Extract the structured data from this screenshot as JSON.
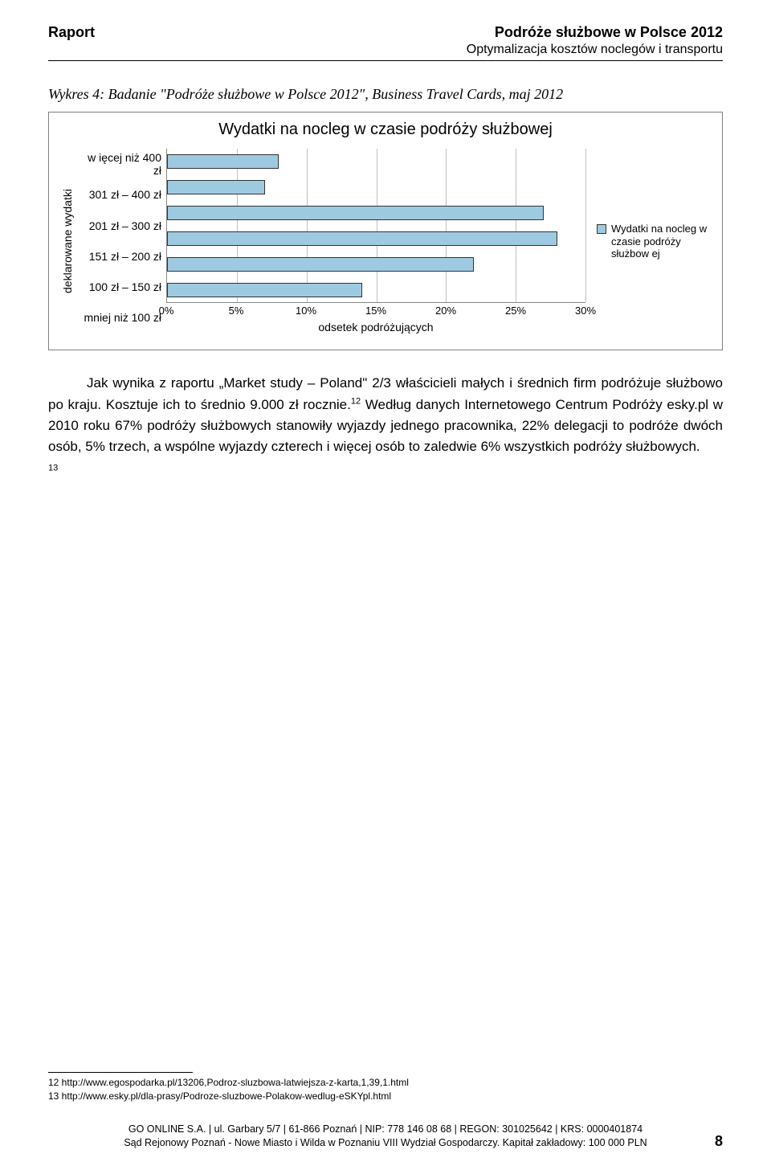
{
  "header": {
    "left": "Raport",
    "right_title": "Podróże służbowe w Polsce 2012",
    "right_sub": "Optymalizacja kosztów noclegów i transportu"
  },
  "caption": "Wykres 4: Badanie \"Podróże służbowe w Polsce 2012\", Business Travel Cards, maj 2012",
  "chart": {
    "type": "bar-horizontal",
    "title": "Wydatki na nocleg w czasie podróży służbowej",
    "ylabel": "deklarowane wydatki",
    "xlabel": "odsetek podróżujących",
    "categories": [
      "w ięcej niż 400 zł",
      "301 zł – 400 zł",
      "201 zł – 300 zł",
      "151 zł – 200 zł",
      "100 zł – 150 zł",
      "mniej niż 100 zł"
    ],
    "values": [
      8,
      7,
      27,
      28,
      22,
      14
    ],
    "bar_color": "#9ecae1",
    "bar_border": "#333333",
    "xlim_max": 30,
    "xtick_step": 5,
    "xtick_labels": [
      "0%",
      "5%",
      "10%",
      "15%",
      "20%",
      "25%",
      "30%"
    ],
    "grid_color": "#c0c0c0",
    "legend_text": "Wydatki na nocleg w czasie podróży służbow ej"
  },
  "body": {
    "p1_a": "Jak wynika z raportu „Market study – Poland\" 2/3 właścicieli małych i średnich firm podróżuje służbowo po kraju. Kosztuje ich to średnio 9.000 zł rocznie.",
    "p1_sup1": "12",
    "p1_b": " Według danych Internetowego Centrum Podróży esky.pl w 2010 roku 67% podróży służbowych stanowiły wyjazdy jednego pracownika, 22% delegacji to podróże dwóch osób, 5% trzech, a wspólne wyjazdy czterech i więcej osób to zaledwie 6% wszystkich podróży służbowych. ",
    "p1_sup2": "13"
  },
  "footnotes": {
    "n12": "12 http://www.egospodarka.pl/13206,Podroz-sluzbowa-latwiejsza-z-karta,1,39,1.html",
    "n13": "13 http://www.esky.pl/dla-prasy/Podroze-sluzbowe-Polakow-wedlug-eSKYpl.html"
  },
  "footer": {
    "line1": "GO ONLINE S.A. | ul. Garbary 5/7 | 61-866 Poznań | NIP: 778 146 08 68 | REGON: 301025642 | KRS: 0000401874",
    "line2": "Sąd Rejonowy Poznań - Nowe Miasto i Wilda w Poznaniu VIII Wydział Gospodarczy. Kapitał zakładowy: 100 000 PLN"
  },
  "page_number": "8"
}
